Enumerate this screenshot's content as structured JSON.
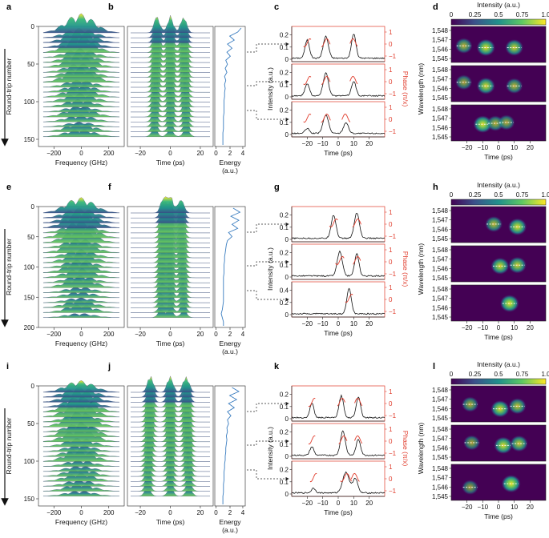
{
  "figure": {
    "colors": {
      "intensity": "#111111",
      "phase": "#e03c2c",
      "energy": "#3a7dc0",
      "map_low": "#440154",
      "map_mid": "#21918c",
      "map_high": "#fde725",
      "arrow": "#222222"
    },
    "rows": [
      {
        "labels": {
          "a": "a",
          "b": "b",
          "c": "c",
          "d": "d"
        },
        "spectral_evolution": {
          "ylabel": "Round-trip number",
          "yticks": [
            "0",
            "50",
            "100",
            "150"
          ],
          "xticks": [
            "−200",
            "0",
            "200"
          ],
          "xlabel": "Frequency (GHz)"
        },
        "temporal_evolution": {
          "xticks": [
            "−20",
            "0",
            "20"
          ],
          "xlabel": "Time (ps)",
          "pulse_positions_ps": [
            -10,
            0,
            10
          ]
        },
        "energy": {
          "xticks": [
            "0",
            "2",
            "4"
          ],
          "xlabel": "Energy",
          "xlabel_unit": "(a.u.)",
          "values": [
            4.2,
            3.6,
            2.2,
            3.0,
            1.8,
            2.6,
            1.7,
            2.3,
            1.5,
            1.8,
            1.4,
            1.7,
            1.3,
            1.5,
            1.3,
            1.4,
            1.3,
            1.3,
            1.2,
            1.2,
            1.2,
            1.2,
            1.1,
            1.1,
            1.1,
            1.1,
            1.0,
            1.0,
            1.0,
            1.0
          ]
        },
        "intensity": {
          "ylabel": "Intensity (a.u.)",
          "phase_label": "Phase (π/x)",
          "xticks": [
            "−20",
            "−10",
            "0",
            "10",
            "20"
          ],
          "xlabel": "Time (ps)",
          "sub": [
            {
              "yticks": [
                "0",
                "0.1",
                "0.2"
              ],
              "ymax": 0.25,
              "phase_ticks": [
                "1",
                "0",
                "−1"
              ],
              "pulses": [
                {
                  "c": -20,
                  "a": 0.15,
                  "w": 2.0
                },
                {
                  "c": -8,
                  "a": 0.18,
                  "w": 2.3
                },
                {
                  "c": 10,
                  "a": 0.2,
                  "w": 2.0
                }
              ]
            },
            {
              "yticks": [
                "0",
                "0.1",
                "0.2"
              ],
              "ymax": 0.25,
              "phase_ticks": [
                "1",
                "0",
                "−1"
              ],
              "pulses": [
                {
                  "c": -20,
                  "a": 0.1,
                  "w": 2.0
                },
                {
                  "c": -8,
                  "a": 0.19,
                  "w": 2.3
                },
                {
                  "c": 10,
                  "a": 0.12,
                  "w": 2.0
                }
              ]
            },
            {
              "yticks": [
                "0",
                "0.1",
                "0.2"
              ],
              "ymax": 0.25,
              "phase_ticks": [
                "1",
                "0",
                "−1"
              ],
              "pulses": [
                {
                  "c": -20,
                  "a": 0.04,
                  "w": 2.0
                },
                {
                  "c": -8,
                  "a": 0.15,
                  "w": 2.5
                },
                {
                  "c": 5,
                  "a": 0.09,
                  "w": 2.2
                }
              ]
            }
          ]
        },
        "spectrogram": {
          "colorbar_title": "Intensity (a.u.)",
          "colorbar_ticks": [
            "0",
            "0.25",
            "0.5",
            "0.75",
            "1.0"
          ],
          "ylabel": "Wavelength (nm)",
          "yticks": [
            "1,548",
            "1,547",
            "1,546",
            "1,545"
          ],
          "xticks": [
            "−20",
            "−10",
            "0",
            "10",
            "20"
          ],
          "xlabel": "Time (ps)",
          "sub": [
            {
              "blobs": [
                {
                  "t": -22,
                  "w": 1546.5,
                  "a": 0.55
                },
                {
                  "t": -8,
                  "w": 1546.3,
                  "a": 0.85
                },
                {
                  "t": 10,
                  "w": 1546.3,
                  "a": 0.75
                }
              ]
            },
            {
              "blobs": [
                {
                  "t": -22,
                  "w": 1546.8,
                  "a": 0.45
                },
                {
                  "t": -8,
                  "w": 1546.4,
                  "a": 0.8
                },
                {
                  "t": 10,
                  "w": 1546.4,
                  "a": 0.55
                }
              ]
            },
            {
              "blobs": [
                {
                  "t": -10,
                  "w": 1546.5,
                  "a": 0.9
                },
                {
                  "t": -2,
                  "w": 1546.6,
                  "a": 0.55
                },
                {
                  "t": 5,
                  "w": 1546.7,
                  "a": 0.5
                }
              ]
            }
          ]
        }
      },
      {
        "labels": {
          "a": "e",
          "b": "f",
          "c": "g",
          "d": "h"
        },
        "spectral_evolution": {
          "ylabel": "Round-trip number",
          "yticks": [
            "0",
            "50",
            "100",
            "150",
            "200"
          ],
          "xticks": [
            "−200",
            "0",
            "200"
          ],
          "xlabel": "Frequency (GHz)"
        },
        "temporal_evolution": {
          "xticks": [
            "−20",
            "0",
            "20"
          ],
          "xlabel": "Time (ps)",
          "pulse_positions_ps": [
            -5,
            0,
            8
          ]
        },
        "energy": {
          "xticks": [
            "0",
            "2",
            "4"
          ],
          "xlabel": "Energy",
          "xlabel_unit": "(a.u.)",
          "values": [
            2.8,
            4.0,
            2.4,
            3.8,
            2.6,
            3.6,
            2.0,
            2.6,
            1.8,
            1.6,
            1.5,
            1.4,
            1.3,
            1.3,
            1.2,
            1.2,
            1.2,
            1.1,
            1.1,
            1.1,
            1.1,
            1.1,
            1.1,
            1.1,
            1.0,
            0.9,
            0.7,
            0.9,
            1.1,
            1.1
          ]
        },
        "intensity": {
          "ylabel": "Intensity (a.u.)",
          "phase_label": "Phase (π/x)",
          "xticks": [
            "−20",
            "−10",
            "0",
            "10",
            "20"
          ],
          "xlabel": "Time (ps)",
          "sub": [
            {
              "yticks": [
                "0",
                "0.1",
                "0.2"
              ],
              "ymax": 0.25,
              "phase_ticks": [
                "1",
                "0",
                "−1"
              ],
              "pulses": [
                {
                  "c": -3,
                  "a": 0.19,
                  "w": 2.2
                },
                {
                  "c": 12,
                  "a": 0.21,
                  "w": 2.3
                }
              ]
            },
            {
              "yticks": [
                "0",
                "0.1",
                "0.2"
              ],
              "ymax": 0.25,
              "phase_ticks": [
                "1",
                "0",
                "−1"
              ],
              "pulses": [
                {
                  "c": 1,
                  "a": 0.2,
                  "w": 2.3
                },
                {
                  "c": 12,
                  "a": 0.18,
                  "w": 2.0
                }
              ]
            },
            {
              "yticks": [
                "0",
                "0.2",
                "0.4"
              ],
              "ymax": 0.5,
              "phase_ticks": [
                "1",
                "0",
                "−1"
              ],
              "pulses": [
                {
                  "c": 7,
                  "a": 0.42,
                  "w": 2.0
                }
              ]
            }
          ]
        },
        "spectrogram": {
          "colorbar_title": "Intensity (a.u.)",
          "colorbar_ticks": [
            "0",
            "0.25",
            "0.5",
            "0.75",
            "1.0"
          ],
          "ylabel": "Wavelength (nm)",
          "yticks": [
            "1,548",
            "1,547",
            "1,546",
            "1,545"
          ],
          "xticks": [
            "−20",
            "−10",
            "0",
            "10",
            "20"
          ],
          "xlabel": "Time (ps)",
          "sub": [
            {
              "blobs": [
                {
                  "t": -3,
                  "w": 1546.7,
                  "a": 0.6
                },
                {
                  "t": 12,
                  "w": 1546.4,
                  "a": 0.85
                }
              ]
            },
            {
              "blobs": [
                {
                  "t": 1,
                  "w": 1546.4,
                  "a": 0.8
                },
                {
                  "t": 12,
                  "w": 1546.5,
                  "a": 0.75
                }
              ]
            },
            {
              "blobs": [
                {
                  "t": 7,
                  "w": 1546.6,
                  "a": 0.9
                }
              ]
            }
          ]
        }
      },
      {
        "labels": {
          "a": "i",
          "b": "j",
          "c": "k",
          "d": "l"
        },
        "spectral_evolution": {
          "ylabel": "Round-trip number",
          "yticks": [
            "0",
            "50",
            "100",
            "150"
          ],
          "xticks": [
            "−200",
            "0",
            "200"
          ],
          "xlabel": "Frequency (GHz)"
        },
        "temporal_evolution": {
          "xticks": [
            "−20",
            "0",
            "20"
          ],
          "xlabel": "Time (ps)",
          "pulse_positions_ps": [
            -15,
            0,
            12
          ]
        },
        "energy": {
          "xticks": [
            "0",
            "2",
            "4"
          ],
          "xlabel": "Energy",
          "xlabel_unit": "(a.u.)",
          "values": [
            2.6,
            3.8,
            2.2,
            3.4,
            2.0,
            3.0,
            1.8,
            2.4,
            1.8,
            2.0,
            1.7,
            1.8,
            1.6,
            1.7,
            1.6,
            1.5,
            1.5,
            1.4,
            1.4,
            1.3,
            1.3,
            1.2,
            1.2,
            1.2,
            1.1,
            1.1,
            1.1,
            1.0,
            1.0,
            1.0
          ]
        },
        "intensity": {
          "ylabel": "Intensity (a.u.)",
          "phase_label": "Phase (π/x)",
          "xticks": [
            "−20",
            "−10",
            "0",
            "10",
            "20"
          ],
          "xlabel": "Time (ps)",
          "sub": [
            {
              "yticks": [
                "0",
                "0.1",
                "0.2"
              ],
              "ymax": 0.25,
              "phase_ticks": [
                "1",
                "0",
                "−1"
              ],
              "pulses": [
                {
                  "c": -17,
                  "a": 0.12,
                  "w": 1.8
                },
                {
                  "c": 2,
                  "a": 0.18,
                  "w": 2.0
                },
                {
                  "c": 13,
                  "a": 0.17,
                  "w": 2.0
                }
              ]
            },
            {
              "yticks": [
                "0",
                "0.1",
                "0.2"
              ],
              "ymax": 0.25,
              "phase_ticks": [
                "1",
                "0",
                "−1"
              ],
              "pulses": [
                {
                  "c": -17,
                  "a": 0.07,
                  "w": 1.8
                },
                {
                  "c": 3,
                  "a": 0.2,
                  "w": 2.2
                },
                {
                  "c": 13,
                  "a": 0.13,
                  "w": 2.0
                }
              ]
            },
            {
              "yticks": [
                "0",
                "0.1",
                "0.2"
              ],
              "ymax": 0.25,
              "phase_ticks": [
                "1",
                "0",
                "−1"
              ],
              "pulses": [
                {
                  "c": -16,
                  "a": 0.04,
                  "w": 1.8
                },
                {
                  "c": 5,
                  "a": 0.17,
                  "w": 3.0
                },
                {
                  "c": 11,
                  "a": 0.12,
                  "w": 2.2
                }
              ]
            }
          ]
        },
        "spectrogram": {
          "colorbar_title": "Intensity (a.u.)",
          "colorbar_ticks": [
            "0",
            "0.25",
            "0.5",
            "0.75",
            "1.0"
          ],
          "ylabel": "Wavelength (nm)",
          "yticks": [
            "1,548",
            "1,547",
            "1,546",
            "1,545"
          ],
          "xticks": [
            "−20",
            "−10",
            "0",
            "10",
            "20"
          ],
          "xlabel": "Time (ps)",
          "sub": [
            {
              "blobs": [
                {
                  "t": -18,
                  "w": 1546.6,
                  "a": 0.5
                },
                {
                  "t": 1,
                  "w": 1546.1,
                  "a": 0.85
                },
                {
                  "t": 12,
                  "w": 1546.4,
                  "a": 0.65
                }
              ]
            },
            {
              "blobs": [
                {
                  "t": -17,
                  "w": 1546.7,
                  "a": 0.45
                },
                {
                  "t": 3,
                  "w": 1546.4,
                  "a": 0.85
                },
                {
                  "t": 13,
                  "w": 1546.6,
                  "a": 0.7
                }
              ]
            },
            {
              "blobs": [
                {
                  "t": -18,
                  "w": 1546.1,
                  "a": 0.4
                },
                {
                  "t": 8,
                  "w": 1546.5,
                  "a": 0.95
                }
              ]
            }
          ]
        }
      }
    ]
  }
}
